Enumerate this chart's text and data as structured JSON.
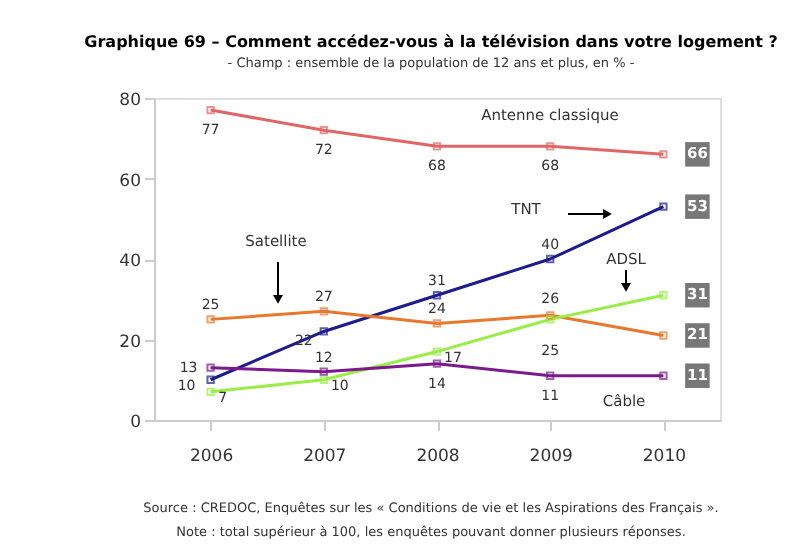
{
  "chart_data": {
    "type": "line",
    "title": "Graphique 69 – Comment accédez-vous à la télévision dans votre logement ?",
    "subtitle": "- Champ : ensemble de la population de 12 ans et plus, en % -",
    "categories": [
      "2006",
      "2007",
      "2008",
      "2009",
      "2010"
    ],
    "series": [
      {
        "name": "Antenne classique",
        "color": "#e06666",
        "values": [
          77,
          72,
          68,
          68,
          66
        ]
      },
      {
        "name": "TNT",
        "color": "#1c1c8c",
        "values": [
          10,
          22,
          31,
          40,
          53
        ]
      },
      {
        "name": "Satellite",
        "color": "#e8782e",
        "values": [
          25,
          27,
          24,
          26,
          21
        ]
      },
      {
        "name": "ADSL",
        "color": "#98ee44",
        "values": [
          7,
          10,
          17,
          25,
          31
        ]
      },
      {
        "name": "Câble",
        "color": "#7b1a8c",
        "values": [
          13,
          12,
          14,
          11,
          11
        ]
      }
    ],
    "ylim": [
      0,
      80
    ],
    "yticks": [
      0,
      20,
      40,
      60,
      80
    ],
    "grid": false,
    "legend": false,
    "marker": "square",
    "line_style": "solid",
    "data_labels": true,
    "annotations": [
      "Source : CREDOC, Enquêtes sur les « Conditions de vie et les Aspirations des Français ».",
      "Note : total supérieur à 100, les enquêtes pouvant donner plusieurs réponses."
    ]
  }
}
